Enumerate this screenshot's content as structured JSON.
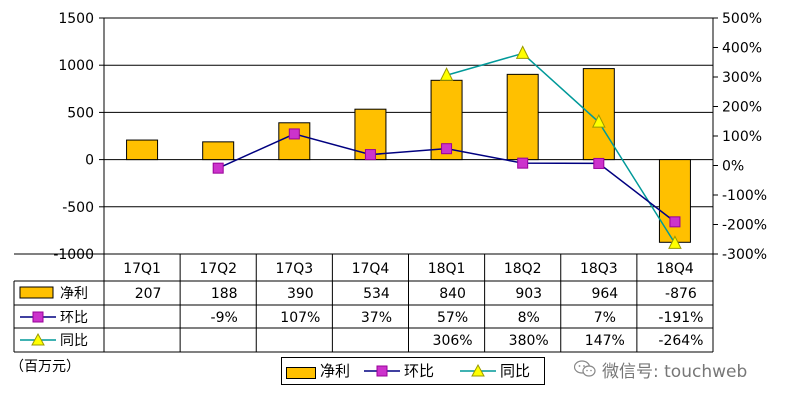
{
  "chart_data": {
    "type": "bar",
    "categories": [
      "17Q1",
      "17Q2",
      "17Q3",
      "17Q4",
      "18Q1",
      "18Q2",
      "18Q3",
      "18Q4"
    ],
    "series": [
      {
        "name": "净利",
        "type": "bar",
        "axis": "left",
        "values": [
          207,
          188,
          390,
          534,
          840,
          903,
          964,
          -876
        ],
        "labels": [
          "207",
          "188",
          "390",
          "534",
          "840",
          "903",
          "964",
          "-876"
        ],
        "color": "#FFC000"
      },
      {
        "name": "环比",
        "type": "line",
        "axis": "right",
        "marker": "square",
        "values": [
          null,
          -9,
          107,
          37,
          57,
          8,
          7,
          -191
        ],
        "labels": [
          "",
          "-9%",
          "107%",
          "37%",
          "57%",
          "8%",
          "7%",
          "-191%"
        ],
        "color": "#CC33CC"
      },
      {
        "name": "同比",
        "type": "line",
        "axis": "right",
        "marker": "triangle",
        "values": [
          null,
          null,
          null,
          null,
          306,
          380,
          147,
          -264
        ],
        "labels": [
          "",
          "",
          "",
          "",
          "306%",
          "380%",
          "147%",
          "-264%"
        ],
        "color": "#FFFF00"
      }
    ],
    "y_left": {
      "min": -1000,
      "max": 1500,
      "ticks": [
        -1000,
        -500,
        0,
        500,
        1000,
        1500
      ]
    },
    "y_right": {
      "min": -300,
      "max": 500,
      "ticks": [
        -300,
        -200,
        -100,
        0,
        100,
        200,
        300,
        400,
        500
      ],
      "tick_labels": [
        "-300%",
        "-200%",
        "-100%",
        "0%",
        "100%",
        "200%",
        "300%",
        "400%",
        "500%"
      ]
    },
    "unit_label": "（百万元）",
    "grid": true,
    "legend_position": "bottom",
    "data_table": true
  },
  "legend": {
    "items": [
      "净利",
      "环比",
      "同比"
    ]
  },
  "watermark": {
    "text": "微信号: touchweb"
  }
}
